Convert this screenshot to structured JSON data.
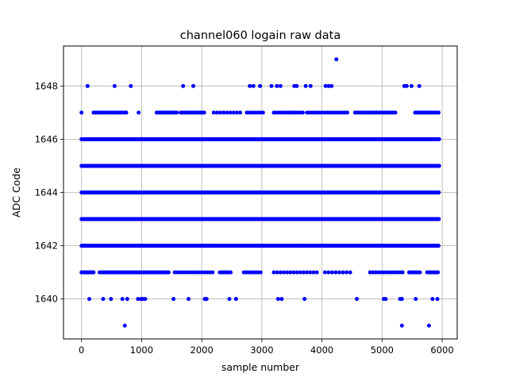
{
  "chart_data": {
    "type": "scatter",
    "title": "channel060 logain raw data",
    "xlabel": "sample number",
    "ylabel": "ADC Code",
    "xlim": [
      -300,
      6250
    ],
    "ylim": [
      1638.5,
      1649.5
    ],
    "x_ticks": [
      0,
      1000,
      2000,
      3000,
      4000,
      5000,
      6000
    ],
    "x_tick_labels": [
      "0",
      "1000",
      "2000",
      "3000",
      "4000",
      "5000",
      "6000"
    ],
    "y_ticks": [
      1640,
      1642,
      1644,
      1646,
      1648
    ],
    "y_tick_labels": [
      "1640",
      "1642",
      "1644",
      "1646",
      "1648"
    ],
    "grid": true,
    "marker_color": "#0000ff",
    "series": [
      {
        "levels": [
          {
            "y": 1643,
            "x": [
              [
                0,
                5950,
                8
              ]
            ]
          },
          {
            "y": 1644,
            "x": [
              [
                0,
                5950,
                8
              ]
            ]
          },
          {
            "y": 1645,
            "x": [
              [
                0,
                5950,
                10
              ]
            ]
          },
          {
            "y": 1642,
            "x": [
              [
                0,
                5950,
                15
              ]
            ]
          },
          {
            "y": 1646,
            "x": [
              [
                0,
                5950,
                14
              ]
            ]
          },
          {
            "y": 1641,
            "x": [
              [
                0,
                200,
                20
              ],
              [
                300,
                1450,
                28
              ],
              [
                1550,
                2200,
                45
              ],
              [
                2300,
                2500,
                30
              ],
              [
                2700,
                3000,
                40
              ],
              [
                3200,
                3950,
                55
              ],
              [
                4050,
                4500,
                60
              ],
              [
                4800,
                5350,
                45
              ],
              [
                5450,
                5650,
                30
              ],
              [
                5750,
                5950,
                30
              ]
            ]
          },
          {
            "y": 1647,
            "x": [
              [
                0,
                0,
                1
              ],
              [
                200,
                750,
                32
              ],
              [
                950,
                950,
                1
              ],
              [
                1250,
                1600,
                28
              ],
              [
                1650,
                2050,
                30
              ],
              [
                2200,
                2650,
                55
              ],
              [
                2750,
                3050,
                45
              ],
              [
                3200,
                3700,
                40
              ],
              [
                3750,
                4450,
                42
              ],
              [
                4550,
                5250,
                32
              ],
              [
                5550,
                5950,
                26
              ]
            ]
          },
          {
            "y": 1648,
            "x": [
              100,
              550,
              820,
              1690,
              1860,
              2800,
              2860,
              2970,
              3160,
              3250,
              3310,
              3540,
              3580,
              3730,
              3810,
              4060,
              4110,
              4160,
              5370,
              5410,
              5490,
              5620
            ]
          },
          {
            "y": 1640,
            "x": [
              130,
              360,
              490,
              680,
              760,
              940,
              990,
              1020,
              1060,
              1530,
              1780,
              2050,
              2080,
              2460,
              2570,
              3270,
              3330,
              3710,
              4580,
              5030,
              5060,
              5300,
              5330,
              5560,
              5840,
              5920
            ]
          },
          {
            "y": 1649,
            "x": [
              4240
            ]
          },
          {
            "y": 1639,
            "x": [
              720,
              5330,
              5780
            ]
          }
        ]
      }
    ]
  }
}
